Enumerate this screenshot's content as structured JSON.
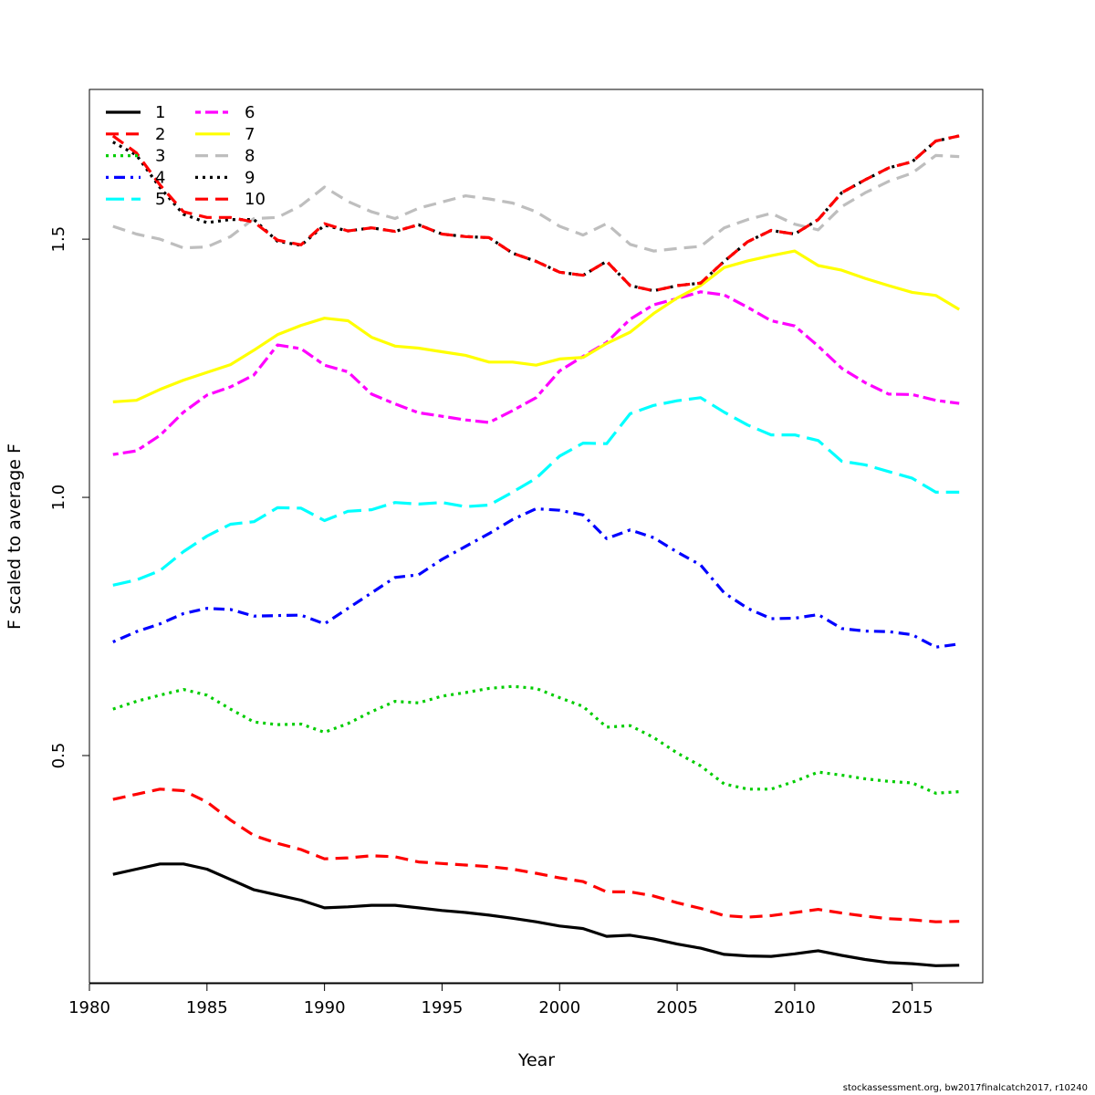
{
  "chart_data": {
    "type": "line",
    "title": "",
    "xlabel": "Year",
    "ylabel": "F scaled to average F",
    "xlim": [
      1980,
      2018
    ],
    "ylim": [
      0.06,
      1.79
    ],
    "xticks": [
      1980,
      1985,
      1990,
      1995,
      2000,
      2005,
      2010,
      2015
    ],
    "yticks": [
      0.5,
      1.0,
      1.5
    ],
    "ytick_labels": [
      "0.5",
      "1.0",
      "1.5"
    ],
    "grid": false,
    "legend": {
      "position": "top-left",
      "columns": 2
    },
    "x": [
      1981,
      1982,
      1983,
      1984,
      1985,
      1986,
      1987,
      1988,
      1989,
      1990,
      1991,
      1992,
      1993,
      1994,
      1995,
      1996,
      1997,
      1998,
      1999,
      2000,
      2001,
      2002,
      2003,
      2004,
      2005,
      2006,
      2007,
      2008,
      2009,
      2010,
      2011,
      2012,
      2013,
      2014,
      2015,
      2016,
      2017
    ],
    "series": [
      {
        "name": "1",
        "color": "#000000",
        "dash": "solid",
        "width": 3.2,
        "values": [
          0.27,
          0.28,
          0.29,
          0.29,
          0.28,
          0.26,
          0.24,
          0.23,
          0.22,
          0.205,
          0.207,
          0.21,
          0.21,
          0.205,
          0.2,
          0.196,
          0.191,
          0.185,
          0.178,
          0.17,
          0.165,
          0.15,
          0.152,
          0.145,
          0.135,
          0.127,
          0.115,
          0.112,
          0.111,
          0.116,
          0.122,
          0.113,
          0.105,
          0.099,
          0.097,
          0.093,
          0.094
        ]
      },
      {
        "name": "2",
        "color": "#ff0000",
        "dash": "dashed",
        "width": 3.2,
        "values": [
          0.415,
          0.425,
          0.435,
          0.432,
          0.41,
          0.375,
          0.345,
          0.33,
          0.318,
          0.3,
          0.302,
          0.306,
          0.304,
          0.294,
          0.291,
          0.288,
          0.285,
          0.28,
          0.272,
          0.263,
          0.256,
          0.236,
          0.236,
          0.228,
          0.215,
          0.204,
          0.19,
          0.187,
          0.19,
          0.196,
          0.202,
          0.195,
          0.189,
          0.184,
          0.182,
          0.178,
          0.179
        ]
      },
      {
        "name": "3",
        "color": "#00cd00",
        "dash": "dotted",
        "width": 3.2,
        "values": [
          0.59,
          0.605,
          0.617,
          0.628,
          0.617,
          0.59,
          0.565,
          0.56,
          0.561,
          0.545,
          0.562,
          0.585,
          0.605,
          0.602,
          0.615,
          0.622,
          0.63,
          0.634,
          0.63,
          0.612,
          0.595,
          0.555,
          0.558,
          0.535,
          0.505,
          0.48,
          0.445,
          0.435,
          0.435,
          0.45,
          0.468,
          0.462,
          0.455,
          0.45,
          0.447,
          0.427,
          0.43
        ]
      },
      {
        "name": "4",
        "color": "#0000ff",
        "dash": "dotdash",
        "width": 3.2,
        "values": [
          0.72,
          0.74,
          0.755,
          0.775,
          0.785,
          0.783,
          0.77,
          0.771,
          0.772,
          0.755,
          0.785,
          0.815,
          0.845,
          0.85,
          0.88,
          0.905,
          0.93,
          0.957,
          0.978,
          0.975,
          0.966,
          0.92,
          0.937,
          0.922,
          0.894,
          0.869,
          0.815,
          0.785,
          0.765,
          0.766,
          0.773,
          0.746,
          0.741,
          0.74,
          0.734,
          0.71,
          0.716
        ]
      },
      {
        "name": "5",
        "color": "#00ffff",
        "dash": "longdash",
        "width": 3.2,
        "values": [
          0.83,
          0.84,
          0.858,
          0.895,
          0.925,
          0.948,
          0.953,
          0.98,
          0.979,
          0.955,
          0.973,
          0.976,
          0.99,
          0.987,
          0.99,
          0.982,
          0.985,
          1.01,
          1.037,
          1.08,
          1.105,
          1.104,
          1.162,
          1.178,
          1.187,
          1.193,
          1.165,
          1.14,
          1.121,
          1.121,
          1.11,
          1.07,
          1.063,
          1.05,
          1.037,
          1.01,
          1.01
        ]
      },
      {
        "name": "6",
        "color": "#ff00ff",
        "dash": "twodash",
        "width": 3.2,
        "values": [
          1.083,
          1.09,
          1.12,
          1.165,
          1.198,
          1.214,
          1.237,
          1.295,
          1.288,
          1.256,
          1.243,
          1.2,
          1.181,
          1.164,
          1.157,
          1.15,
          1.145,
          1.168,
          1.193,
          1.245,
          1.273,
          1.3,
          1.345,
          1.373,
          1.385,
          1.398,
          1.392,
          1.368,
          1.342,
          1.332,
          1.293,
          1.25,
          1.222,
          1.2,
          1.199,
          1.188,
          1.182
        ]
      },
      {
        "name": "7",
        "color": "#ffff00",
        "dash": "solid",
        "width": 3.2,
        "values": [
          1.185,
          1.188,
          1.209,
          1.227,
          1.242,
          1.257,
          1.285,
          1.315,
          1.333,
          1.347,
          1.342,
          1.31,
          1.293,
          1.289,
          1.282,
          1.275,
          1.262,
          1.262,
          1.256,
          1.268,
          1.271,
          1.298,
          1.32,
          1.356,
          1.386,
          1.41,
          1.445,
          1.458,
          1.468,
          1.477,
          1.449,
          1.44,
          1.424,
          1.41,
          1.397,
          1.391,
          1.364
        ]
      },
      {
        "name": "8",
        "color": "#bebebe",
        "dash": "dashed",
        "width": 3.2,
        "values": [
          1.525,
          1.51,
          1.5,
          1.483,
          1.485,
          1.505,
          1.54,
          1.542,
          1.565,
          1.601,
          1.573,
          1.553,
          1.54,
          1.56,
          1.572,
          1.584,
          1.578,
          1.57,
          1.553,
          1.525,
          1.508,
          1.53,
          1.49,
          1.477,
          1.482,
          1.486,
          1.522,
          1.538,
          1.55,
          1.529,
          1.518,
          1.563,
          1.59,
          1.612,
          1.628,
          1.662,
          1.66
        ]
      },
      {
        "name": "9",
        "color": "#000000",
        "dash": "dotted",
        "width": 3.2,
        "values": [
          1.688,
          1.663,
          1.6,
          1.548,
          1.532,
          1.538,
          1.538,
          1.496,
          1.488,
          1.527,
          1.516,
          1.522,
          1.515,
          1.528,
          1.51,
          1.505,
          1.503,
          1.473,
          1.457,
          1.436,
          1.43,
          1.457,
          1.41,
          1.4,
          1.41,
          1.415,
          1.457,
          1.495,
          1.517,
          1.51,
          1.538,
          1.59,
          1.615,
          1.638,
          1.65,
          1.69,
          1.7
        ]
      },
      {
        "name": "10",
        "color": "#ff0000",
        "dash": "dashed",
        "width": 3.2,
        "values": [
          1.7,
          1.667,
          1.605,
          1.553,
          1.542,
          1.542,
          1.533,
          1.498,
          1.489,
          1.53,
          1.516,
          1.522,
          1.515,
          1.528,
          1.51,
          1.505,
          1.503,
          1.473,
          1.457,
          1.436,
          1.43,
          1.457,
          1.41,
          1.4,
          1.41,
          1.415,
          1.457,
          1.495,
          1.517,
          1.51,
          1.538,
          1.59,
          1.615,
          1.638,
          1.65,
          1.69,
          1.7
        ]
      }
    ]
  },
  "footer": {
    "note": "stockassessment.org, bw2017finalcatch2017, r10240"
  }
}
